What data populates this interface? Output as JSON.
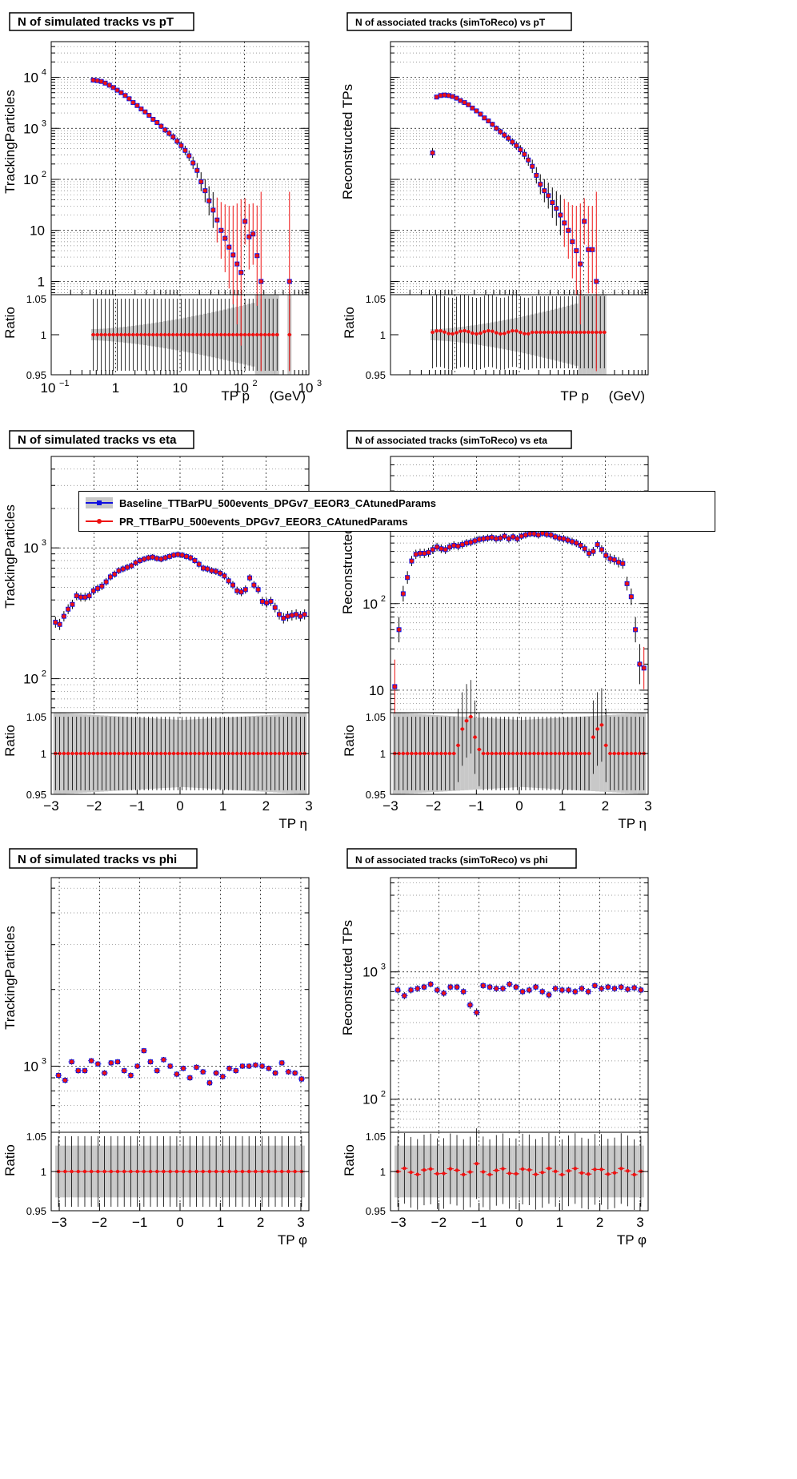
{
  "colors": {
    "baseline": "#1010e0",
    "pr": "#ee1111",
    "band": "#c8c8c8",
    "grid": "#000000"
  },
  "legend": {
    "items": [
      {
        "label": "Baseline_TTBarPU_500events_DPGv7_EEOR3_CAtunedParams",
        "color": "#1010e0",
        "marker": "square"
      },
      {
        "label": "PR_TTBarPU_500events_DPGv7_EEOR3_CAtunedParams",
        "color": "#ee1111",
        "marker": "circle"
      }
    ]
  },
  "chart_data": [
    {
      "type": "scatter",
      "title": "N of simulated tracks vs pT",
      "ylabel": "TrackingParticles",
      "xlabel": "TP p_{T} (GeV)",
      "xscale": "log",
      "yscale": "log",
      "xlim": [
        0.1,
        1000
      ],
      "ylim": [
        0.55,
        50000
      ],
      "xticks": [
        {
          "v": 0.1,
          "t": "10",
          "s": "−1"
        },
        {
          "v": 1,
          "t": "1",
          "s": ""
        },
        {
          "v": 10,
          "t": "10",
          "s": ""
        },
        {
          "v": 100,
          "t": "10",
          "s": "2"
        },
        {
          "v": 1000,
          "t": "10",
          "s": "3"
        }
      ],
      "yticks": [
        {
          "v": 1,
          "t": "1",
          "s": ""
        },
        {
          "v": 10,
          "t": "10",
          "s": ""
        },
        {
          "v": 100,
          "t": "10",
          "s": "2"
        },
        {
          "v": 1000,
          "t": "10",
          "s": "3"
        },
        {
          "v": 10000,
          "t": "10",
          "s": "4"
        }
      ],
      "x": [
        0.45,
        0.52,
        0.6,
        0.69,
        0.8,
        0.92,
        1.06,
        1.22,
        1.41,
        1.62,
        1.87,
        2.16,
        2.49,
        2.87,
        3.31,
        3.82,
        4.4,
        5.08,
        5.86,
        6.76,
        7.8,
        9.0,
        10.4,
        12.0,
        13.8,
        15.9,
        18.4,
        21.2,
        24.5,
        28.2,
        32.6,
        37.6,
        43.4,
        50.0,
        57.7,
        66.6,
        76.8,
        88.6,
        102,
        118,
        136,
        157,
        181,
        209,
        241,
        278,
        321,
        500
      ],
      "series": [
        {
          "name": "Baseline_TTBarPU_500events_DPGv7_EEOR3_CAtunedParams",
          "values": [
            8800,
            8600,
            8300,
            7700,
            7000,
            6300,
            5600,
            5000,
            4400,
            3800,
            3200,
            2800,
            2400,
            2100,
            1800,
            1500,
            1300,
            1100,
            930,
            800,
            680,
            560,
            460,
            370,
            290,
            210,
            150,
            90,
            60,
            38,
            25,
            16,
            10,
            7,
            4.7,
            3.3,
            2.2,
            1.5,
            15,
            7.5,
            8.5,
            3.2,
            1.0,
            null,
            null,
            null,
            null,
            1.0
          ]
        },
        {
          "name": "PR_TTBarPU_500events_DPGv7_EEOR3_CAtunedParams",
          "values": [
            8800,
            8600,
            8300,
            7700,
            7000,
            6300,
            5600,
            5000,
            4400,
            3800,
            3200,
            2800,
            2400,
            2100,
            1800,
            1500,
            1300,
            1100,
            930,
            800,
            680,
            560,
            460,
            370,
            290,
            210,
            150,
            90,
            60,
            38,
            25,
            16,
            10,
            7,
            4.7,
            3.3,
            2.2,
            1.5,
            15,
            7.5,
            8.5,
            3.2,
            1.0,
            null,
            null,
            null,
            null,
            1.0
          ]
        }
      ],
      "ratio": {
        "ylabel": "Ratio",
        "ylim": [
          0.95,
          1.05
        ],
        "yticks": [
          0.95,
          1,
          1.05
        ],
        "values": "all 1.0"
      }
    },
    {
      "type": "scatter",
      "title": "N of associated tracks (simToReco) vs pT",
      "ylabel": "Reconstructed TPs",
      "xlabel": "TP p_{T} (GeV)",
      "xscale": "log",
      "yscale": "log",
      "xlim": [
        0.1,
        1000
      ],
      "ylim": [
        0.55,
        50000
      ],
      "x": [
        0.45,
        0.52,
        0.6,
        0.69,
        0.8,
        0.92,
        1.06,
        1.22,
        1.41,
        1.62,
        1.87,
        2.16,
        2.49,
        2.87,
        3.31,
        3.82,
        4.4,
        5.08,
        5.86,
        6.76,
        7.8,
        9.0,
        10.4,
        12.0,
        13.8,
        15.9,
        18.4,
        21.2,
        24.5,
        28.2,
        32.6,
        37.6,
        43.4,
        50.0,
        57.7,
        66.6,
        76.8,
        88.6,
        102,
        118,
        136,
        157,
        181,
        209
      ],
      "series": [
        {
          "name": "Baseline_TTBarPU_500events_DPGv7_EEOR3_CAtunedParams",
          "values": [
            330,
            4100,
            4400,
            4500,
            4400,
            4200,
            3900,
            3500,
            3200,
            2900,
            2500,
            2200,
            1900,
            1600,
            1400,
            1200,
            1000,
            860,
            740,
            640,
            540,
            460,
            380,
            310,
            240,
            180,
            120,
            80,
            60,
            48,
            35,
            27,
            20,
            14,
            10,
            6,
            4,
            2.2,
            15,
            4.2,
            4.2,
            1.0,
            null,
            null
          ]
        },
        {
          "name": "PR_TTBarPU_500events_DPGv7_EEOR3_CAtunedParams",
          "values": [
            330,
            4100,
            4400,
            4500,
            4400,
            4200,
            3900,
            3500,
            3200,
            2900,
            2500,
            2200,
            1900,
            1600,
            1400,
            1200,
            1000,
            860,
            740,
            640,
            540,
            460,
            380,
            310,
            240,
            180,
            120,
            80,
            60,
            48,
            35,
            27,
            20,
            14,
            10,
            6,
            4,
            2.2,
            15,
            4.2,
            4.2,
            1.0,
            null,
            null
          ]
        }
      ],
      "ratio": {
        "ylabel": "Ratio",
        "ylim": [
          0.95,
          1.05
        ],
        "yticks": [
          0.95,
          1,
          1.05
        ]
      }
    },
    {
      "type": "scatter",
      "title": "N of simulated tracks vs eta",
      "ylabel": "TrackingParticles",
      "xlabel": "TP η",
      "xscale": "linear",
      "yscale": "log",
      "xlim": [
        -3,
        3
      ],
      "ylim": [
        55,
        5000
      ],
      "xticks": [
        -3,
        -2,
        -1,
        0,
        1,
        2,
        3
      ],
      "yticks": [
        {
          "v": 100,
          "t": "10",
          "s": "2"
        },
        {
          "v": 1000,
          "t": "10",
          "s": "3"
        }
      ],
      "series_note": "60 bins from -2.95 to 2.95; Baseline and PR identical",
      "values": [
        270,
        260,
        300,
        340,
        370,
        430,
        420,
        420,
        430,
        470,
        490,
        510,
        550,
        600,
        630,
        670,
        690,
        710,
        730,
        770,
        800,
        820,
        840,
        850,
        830,
        820,
        840,
        860,
        880,
        890,
        880,
        860,
        840,
        800,
        750,
        700,
        690,
        670,
        660,
        640,
        610,
        560,
        520,
        470,
        460,
        480,
        590,
        520,
        480,
        390,
        380,
        390,
        350,
        310,
        290,
        300,
        305,
        310,
        300,
        310
      ],
      "ratio": {
        "ylabel": "Ratio",
        "ylim": [
          0.95,
          1.05
        ],
        "yticks": [
          0.95,
          1,
          1.05
        ]
      }
    },
    {
      "type": "scatter",
      "title": "N of associated tracks (simToReco) vs eta",
      "ylabel": "Reconstructed TPs",
      "xlabel": "TP η",
      "xscale": "linear",
      "yscale": "log",
      "xlim": [
        -3,
        3
      ],
      "ylim": [
        5.5,
        5000
      ],
      "xticks": [
        -3,
        -2,
        -1,
        0,
        1,
        2,
        3
      ],
      "yticks": [
        {
          "v": 10,
          "t": "10",
          "s": ""
        },
        {
          "v": 100,
          "t": "10",
          "s": "2"
        },
        {
          "v": 1000,
          "t": "10",
          "s": "3"
        }
      ],
      "values": [
        11,
        50,
        130,
        200,
        310,
        370,
        380,
        380,
        390,
        420,
        450,
        430,
        420,
        450,
        470,
        460,
        480,
        500,
        510,
        530,
        550,
        560,
        570,
        580,
        560,
        570,
        600,
        560,
        590,
        560,
        600,
        620,
        640,
        640,
        620,
        650,
        630,
        620,
        590,
        570,
        560,
        540,
        520,
        500,
        470,
        430,
        380,
        400,
        480,
        420,
        360,
        330,
        320,
        300,
        290,
        170,
        120,
        50,
        20,
        18
      ],
      "ratio": {
        "ylabel": "Ratio",
        "ylim": [
          0.95,
          1.05
        ],
        "yticks": [
          0.95,
          1,
          1.05
        ]
      }
    },
    {
      "type": "scatter",
      "title": "N of simulated tracks vs phi",
      "ylabel": "TrackingParticles",
      "xlabel": "TP φ",
      "xscale": "linear",
      "yscale": "log",
      "xlim": [
        -3.2,
        3.2
      ],
      "ylim": [
        550,
        5500
      ],
      "xticks": [
        -3,
        -2,
        -1,
        0,
        1,
        2,
        3
      ],
      "yticks": [
        {
          "v": 1000,
          "t": "10",
          "s": "3"
        }
      ],
      "values": [
        920,
        880,
        1040,
        960,
        960,
        1050,
        1020,
        940,
        1030,
        1040,
        960,
        920,
        1000,
        1150,
        1040,
        960,
        1060,
        1000,
        930,
        980,
        900,
        990,
        950,
        860,
        940,
        910,
        980,
        960,
        1000,
        1000,
        1010,
        1000,
        980,
        940,
        1030,
        950,
        940,
        890
      ],
      "ratio": {
        "ylabel": "Ratio",
        "ylim": [
          0.95,
          1.05
        ],
        "yticks": [
          0.95,
          1,
          1.05
        ]
      }
    },
    {
      "type": "scatter",
      "title": "N of associated tracks (simToReco) vs phi",
      "ylabel": "Reconstructed TPs",
      "xlabel": "TP φ",
      "xscale": "linear",
      "yscale": "log",
      "xlim": [
        -3.2,
        3.2
      ],
      "ylim": [
        55,
        5500
      ],
      "xticks": [
        -3,
        -2,
        -1,
        0,
        1,
        2,
        3
      ],
      "yticks": [
        {
          "v": 100,
          "t": "10",
          "s": "2"
        },
        {
          "v": 1000,
          "t": "10",
          "s": "3"
        }
      ],
      "values": [
        720,
        650,
        720,
        740,
        760,
        800,
        720,
        680,
        760,
        760,
        700,
        550,
        480,
        780,
        760,
        740,
        740,
        800,
        760,
        700,
        720,
        760,
        700,
        660,
        740,
        720,
        720,
        700,
        740,
        700,
        780,
        740,
        760,
        740,
        760,
        730,
        750,
        720
      ],
      "ratio": {
        "ylabel": "Ratio",
        "ylim": [
          0.95,
          1.05
        ],
        "yticks": [
          0.95,
          1,
          1.05
        ]
      }
    }
  ]
}
